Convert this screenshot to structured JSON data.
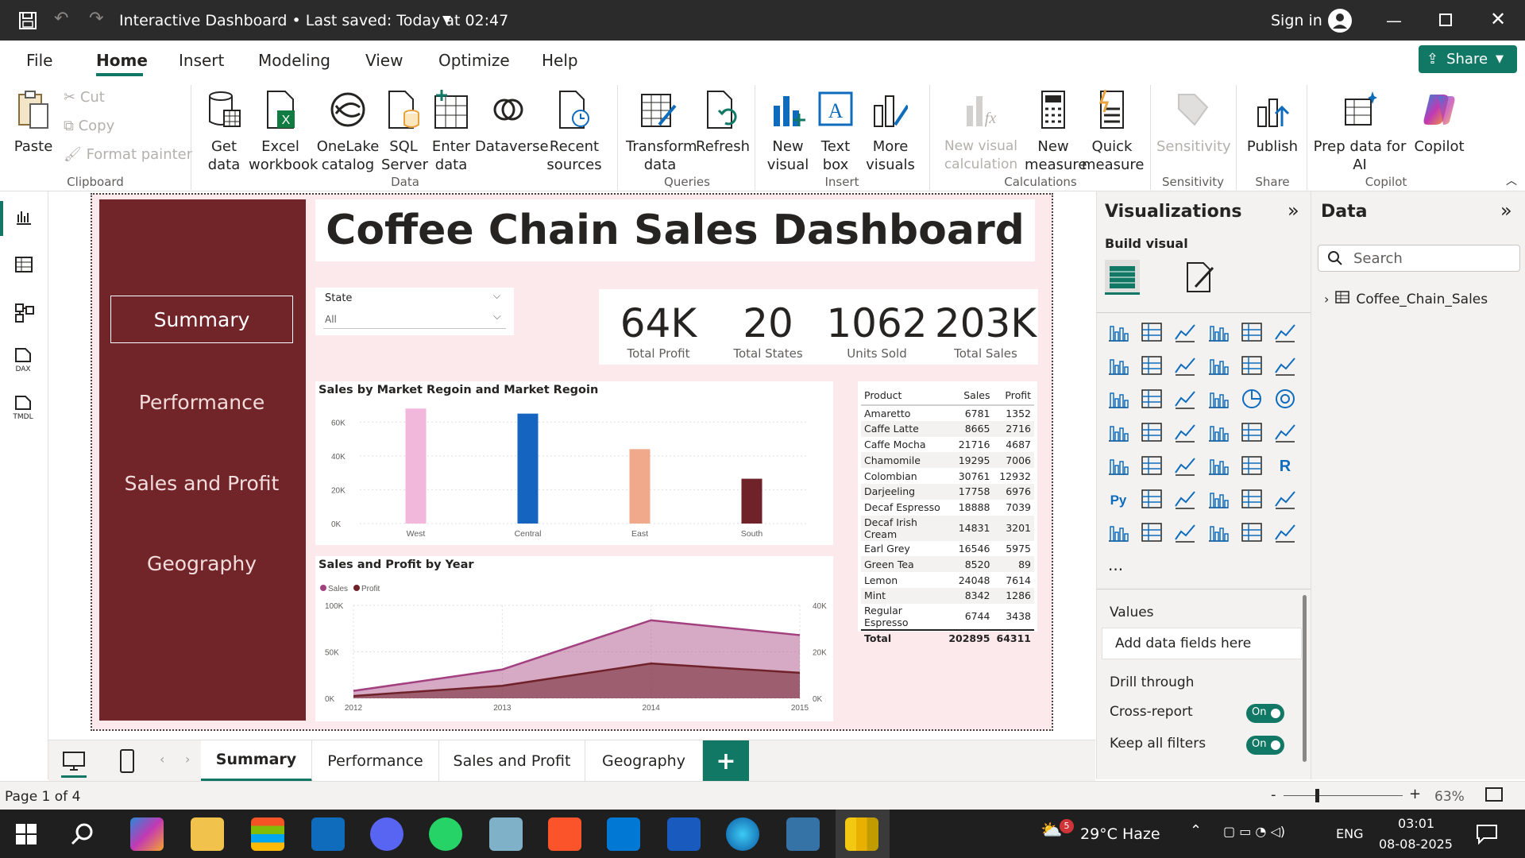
{
  "window": {
    "title": "Interactive Dashboard • Last saved: Today at 02:47",
    "sign_in": "Sign in"
  },
  "menu": {
    "file": "File",
    "home": "Home",
    "insert": "Insert",
    "modeling": "Modeling",
    "view": "View",
    "optimize": "Optimize",
    "help": "Help",
    "share": "Share"
  },
  "ribbon": {
    "paste": "Paste",
    "cut": "Cut",
    "copy": "Copy",
    "format_painter": "Format painter",
    "clipboard": "Clipboard",
    "get_data": "Get data",
    "excel": "Excel workbook",
    "onelake": "OneLake catalog",
    "sql": "SQL Server",
    "enter_data": "Enter data",
    "dataverse": "Dataverse",
    "recent": "Recent sources",
    "data": "Data",
    "transform": "Transform data",
    "refresh": "Refresh",
    "queries": "Queries",
    "new_visual": "New visual",
    "text_box": "Text box",
    "more_visuals": "More visuals",
    "insert": "Insert",
    "new_visual_calc": "New visual calculation",
    "new_measure": "New measure",
    "quick_measure": "Quick measure",
    "calculations": "Calculations",
    "sensitivity_btn": "Sensitivity",
    "sensitivity": "Sensitivity",
    "publish": "Publish",
    "share": "Share",
    "prep_data": "Prep data for AI",
    "copilot_btn": "Copilot",
    "copilot": "Copilot"
  },
  "report": {
    "title": "Coffee Chain Sales Dashboard",
    "nav": [
      "Summary",
      "Performance",
      "Sales and Profit",
      "Geography"
    ],
    "slicer": {
      "label": "State",
      "value": "All"
    },
    "kpis": [
      {
        "value": "64K",
        "label": "Total Profit"
      },
      {
        "value": "20",
        "label": "Total States"
      },
      {
        "value": "1062",
        "label": "Units Sold"
      },
      {
        "value": "203K",
        "label": "Total Sales"
      }
    ],
    "table": {
      "headers": [
        "Product",
        "Sales",
        "Profit"
      ],
      "rows": [
        [
          "Amaretto",
          "6781",
          "1352"
        ],
        [
          "Caffe Latte",
          "8665",
          "2716"
        ],
        [
          "Caffe Mocha",
          "21716",
          "4687"
        ],
        [
          "Chamomile",
          "19295",
          "7006"
        ],
        [
          "Colombian",
          "30761",
          "12932"
        ],
        [
          "Darjeeling",
          "17758",
          "6976"
        ],
        [
          "Decaf Espresso",
          "18888",
          "7039"
        ],
        [
          "Decaf Irish Cream",
          "14831",
          "3201"
        ],
        [
          "Earl Grey",
          "16546",
          "5975"
        ],
        [
          "Green Tea",
          "8520",
          "89"
        ],
        [
          "Lemon",
          "24048",
          "7614"
        ],
        [
          "Mint",
          "8342",
          "1286"
        ],
        [
          "Regular Espresso",
          "6744",
          "3438"
        ]
      ],
      "total": [
        "Total",
        "202895",
        "64311"
      ]
    }
  },
  "chart_data": [
    {
      "type": "bar",
      "title": "Sales by Market Regoin and Market Regoin",
      "categories": [
        "West",
        "Central",
        "East",
        "South"
      ],
      "values": [
        68000,
        65000,
        44000,
        26500
      ],
      "colors": [
        "#f2b8dc",
        "#1565c0",
        "#f0a98a",
        "#70222a"
      ],
      "ylim": [
        0,
        70000
      ],
      "yticks": [
        "0K",
        "20K",
        "40K",
        "60K"
      ],
      "ytick_values": [
        0,
        20000,
        40000,
        60000
      ]
    },
    {
      "type": "area",
      "title": "Sales and Profit by Year",
      "categories": [
        "2012",
        "2013",
        "2014",
        "2015"
      ],
      "series": [
        {
          "name": "Sales",
          "values": [
            8000,
            31000,
            84000,
            68000
          ],
          "color": "#a3407f"
        },
        {
          "name": "Profit",
          "values": [
            1000,
            5400,
            15000,
            11000
          ],
          "color": "#70222a"
        }
      ],
      "ylim_left": [
        0,
        100000
      ],
      "yticks_left": [
        "0K",
        "50K",
        "100K"
      ],
      "ylim_right": [
        0,
        40000
      ],
      "yticks_right": [
        "0K",
        "20K",
        "40K"
      ]
    }
  ],
  "viz_pane": {
    "title": "Visualizations",
    "build": "Build visual",
    "values": "Values",
    "add_fields": "Add data fields here",
    "drill": "Drill through",
    "cross": "Cross-report",
    "keep": "Keep all filters",
    "on": "On",
    "more": "..."
  },
  "data_pane": {
    "title": "Data",
    "search": "Search",
    "table": "Coffee_Chain_Sales"
  },
  "tabs": [
    "Summary",
    "Performance",
    "Sales and Profit",
    "Geography"
  ],
  "status": {
    "page": "Page 1 of 4",
    "zoom": "63%"
  },
  "taskbar": {
    "weather": "29°C  Haze",
    "lang": "ENG",
    "time": "03:01",
    "date": "08-08-2025",
    "badge": "5"
  }
}
